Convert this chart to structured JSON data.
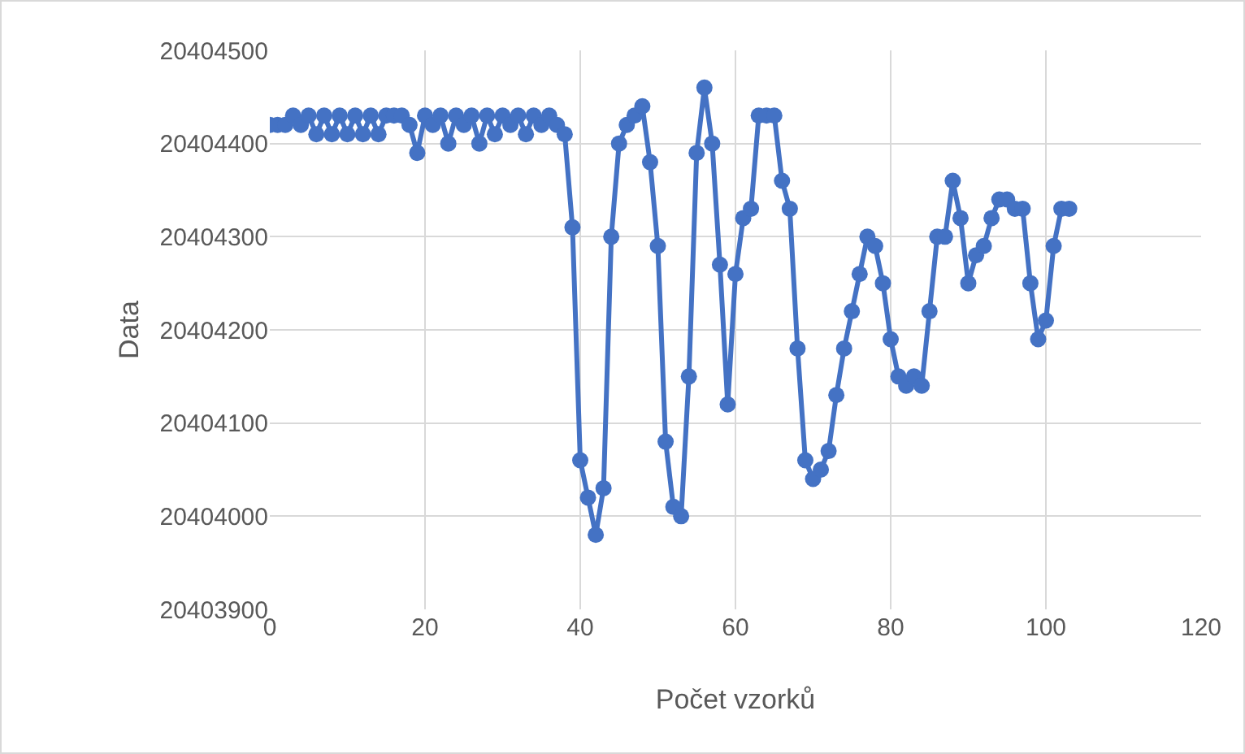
{
  "chart_data": {
    "type": "line",
    "xlabel": "Počet vzorků",
    "ylabel": "Data",
    "x": [
      0,
      1,
      2,
      3,
      4,
      5,
      6,
      7,
      8,
      9,
      10,
      11,
      12,
      13,
      14,
      15,
      16,
      17,
      18,
      19,
      20,
      21,
      22,
      23,
      24,
      25,
      26,
      27,
      28,
      29,
      30,
      31,
      32,
      33,
      34,
      35,
      36,
      37,
      38,
      39,
      40,
      41,
      42,
      43,
      44,
      45,
      46,
      47,
      48,
      49,
      50,
      51,
      52,
      53,
      54,
      55,
      56,
      57,
      58,
      59,
      60,
      61,
      62,
      63,
      64,
      65,
      66,
      67,
      68,
      69,
      70,
      71,
      72,
      73,
      74,
      75,
      76,
      77,
      78,
      79,
      80,
      81,
      82,
      83,
      84,
      85,
      86,
      87,
      88,
      89,
      90,
      91,
      92,
      93,
      94,
      95,
      96,
      97,
      98,
      99,
      100,
      101,
      102,
      103
    ],
    "series": [
      {
        "color": "#4472c4",
        "values": [
          20404420,
          20404420,
          20404420,
          20404430,
          20404420,
          20404430,
          20404410,
          20404430,
          20404410,
          20404430,
          20404410,
          20404430,
          20404410,
          20404430,
          20404410,
          20404430,
          20404430,
          20404430,
          20404420,
          20404390,
          20404430,
          20404420,
          20404430,
          20404400,
          20404430,
          20404420,
          20404430,
          20404400,
          20404430,
          20404410,
          20404430,
          20404420,
          20404430,
          20404410,
          20404430,
          20404420,
          20404430,
          20404420,
          20404410,
          20404310,
          20404060,
          20404020,
          20403980,
          20404030,
          20404300,
          20404400,
          20404420,
          20404430,
          20404440,
          20404380,
          20404290,
          20404080,
          20404010,
          20404000,
          20404150,
          20404390,
          20404460,
          20404400,
          20404270,
          20404120,
          20404260,
          20404320,
          20404330,
          20404430,
          20404430,
          20404430,
          20404360,
          20404330,
          20404180,
          20404060,
          20404040,
          20404050,
          20404070,
          20404130,
          20404180,
          20404220,
          20404260,
          20404300,
          20404290,
          20404250,
          20404190,
          20404150,
          20404140,
          20404150,
          20404140,
          20404220,
          20404300,
          20404300,
          20404360,
          20404320,
          20404250,
          20404280,
          20404290,
          20404320,
          20404340,
          20404340,
          20404330,
          20404330,
          20404250,
          20404190,
          20404210,
          20404290,
          20404330,
          20404330
        ]
      }
    ],
    "xlim": [
      0,
      120
    ],
    "xticks": [
      0,
      20,
      40,
      60,
      80,
      100,
      120
    ],
    "ylim": [
      20403900,
      20404500
    ],
    "yticks": [
      20403900,
      20404000,
      20404100,
      20404200,
      20404300,
      20404400,
      20404500
    ],
    "grid": true,
    "marker": "circle",
    "line_style": "solid"
  }
}
